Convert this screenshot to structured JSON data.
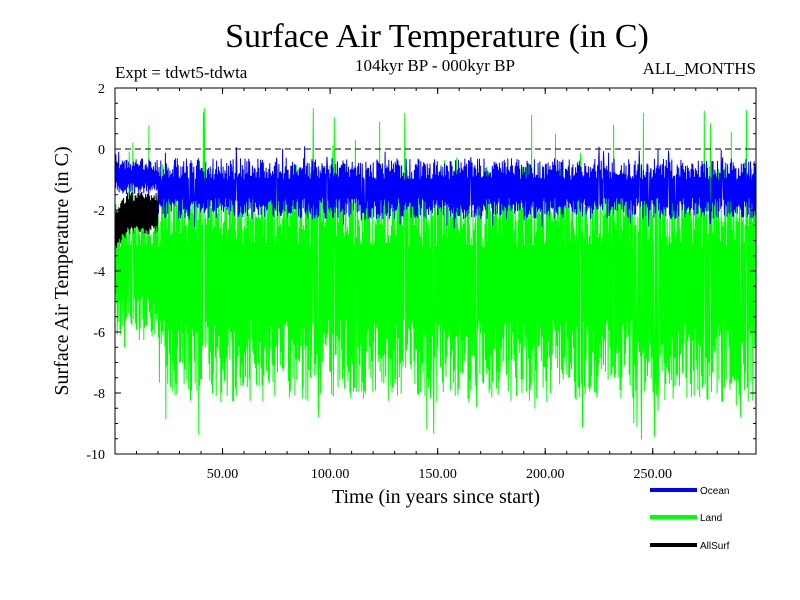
{
  "chart_data": {
    "type": "line",
    "title": "Surface Air Temperature (in C)",
    "subtitle": "104kyr BP - 000kyr BP",
    "experiment_label": "Expt = tdwt5-tdwta",
    "months_label": "ALL_MONTHS",
    "xlabel": "Time (in years since start)",
    "ylabel": "Surface Air Temperature (in C)",
    "xlim": [
      0,
      298
    ],
    "ylim": [
      -10,
      2
    ],
    "x_ticks": [
      50,
      100,
      150,
      200,
      250
    ],
    "x_tick_labels": [
      "50.00",
      "100.00",
      "150.00",
      "200.00",
      "250.00"
    ],
    "y_ticks": [
      2,
      0,
      -2,
      -4,
      -6,
      -8,
      -10
    ],
    "y_tick_labels": [
      "2",
      "0",
      "-2",
      "-4",
      "-6",
      "-8",
      "-10"
    ],
    "reference_line": {
      "y": 0,
      "style": "dashed"
    },
    "series": [
      {
        "name": "Land",
        "color": "#00ff00",
        "description": "noisy band, roughly -2 to -8 with spikes to +1.4 and -9.7",
        "band": {
          "early_x_end": 20,
          "early_low": -6.5,
          "early_high": -1.5,
          "low": -8.3,
          "high": -0.5,
          "min_spike": -9.7,
          "max_spike": 1.4
        }
      },
      {
        "name": "Ocean",
        "color": "#0000ff",
        "description": "noisy band roughly -2.2 to -0.4",
        "band": {
          "early_x_end": 20,
          "early_low": -1.5,
          "early_high": -0.3,
          "low": -2.3,
          "high": -0.3,
          "min_spike": -2.6,
          "max_spike": 0.1
        }
      },
      {
        "name": "AllSurf",
        "color": "#000000",
        "description": "visible only early, roughly -2.8 to -1.4",
        "band": {
          "x_end": 20,
          "low": -2.8,
          "high": -1.4
        }
      }
    ],
    "legend": {
      "position": "bottom-right",
      "entries": [
        {
          "name": "Ocean",
          "color": "#0000ff"
        },
        {
          "name": "Land",
          "color": "#00ff00"
        },
        {
          "name": "AllSurf",
          "color": "#000000"
        }
      ]
    }
  }
}
